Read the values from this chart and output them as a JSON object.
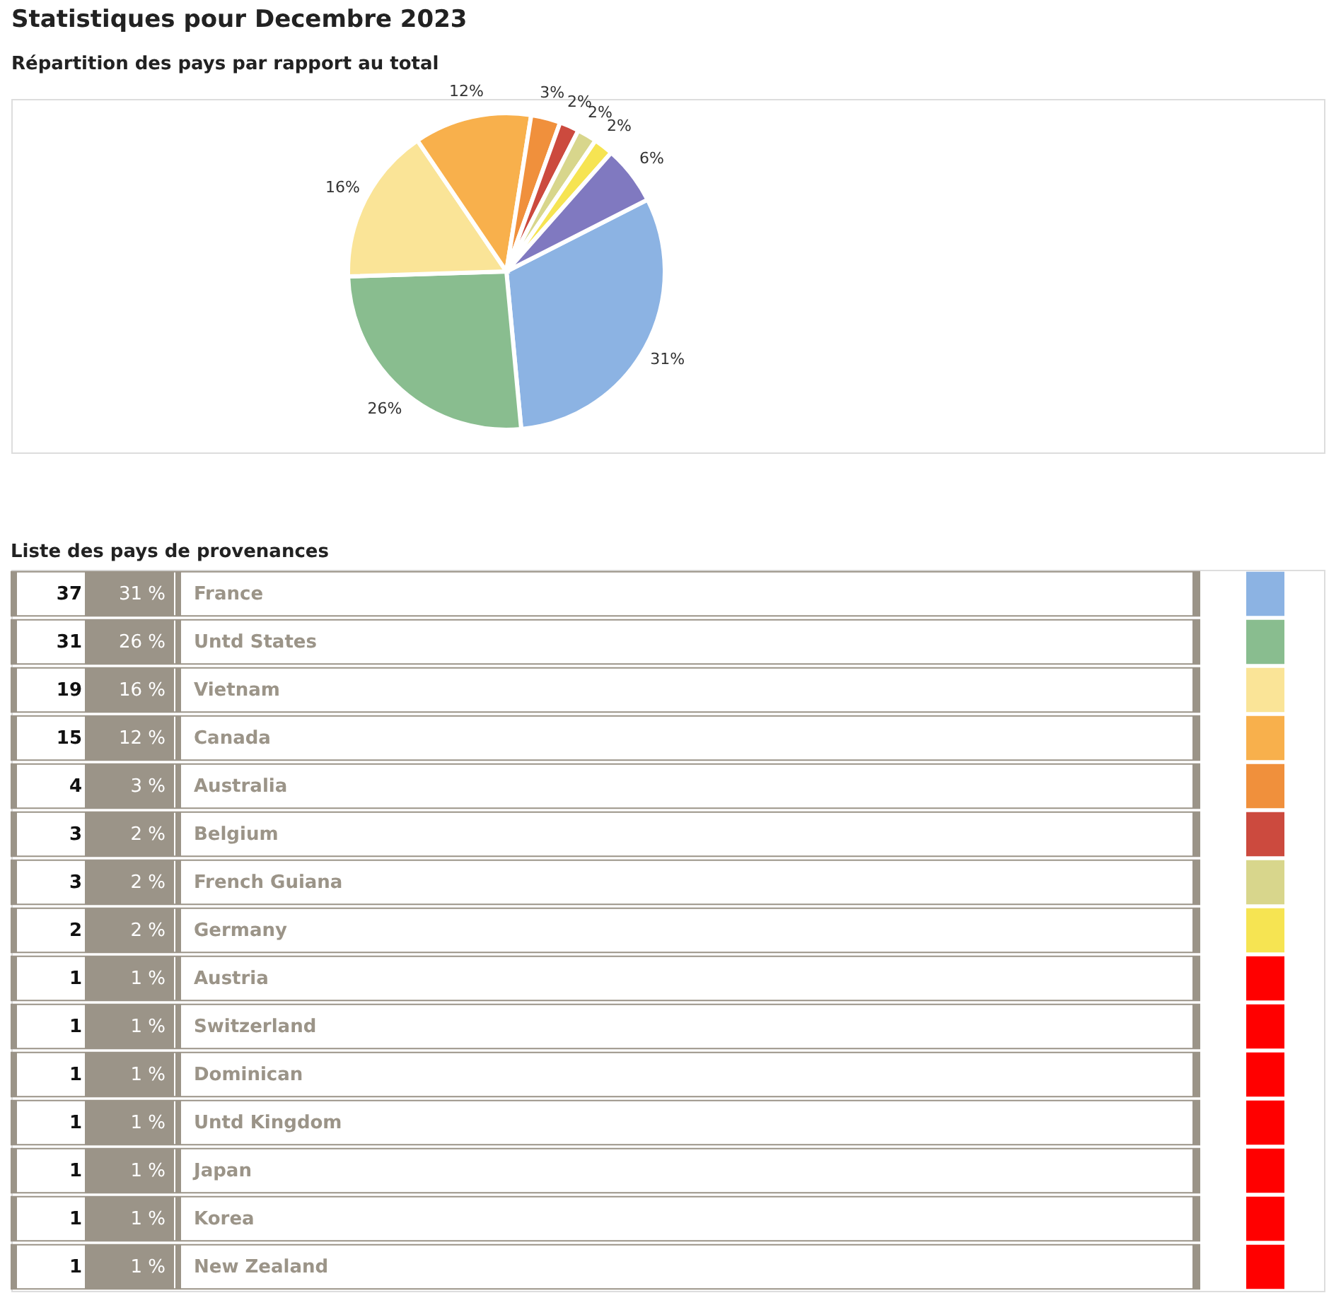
{
  "chart_data": [
    {
      "type": "pie",
      "title": "Statistiques pour Decembre 2023",
      "subtitle": "Répartition des pays par rapport au total",
      "categories": [
        null,
        null,
        null,
        null,
        null,
        null,
        null,
        null,
        null
      ],
      "values": [
        31,
        26,
        16,
        12,
        3,
        2,
        2,
        2,
        6
      ],
      "value_labels": [
        "31%",
        "26%",
        "16%",
        "12%",
        "3%",
        "2%",
        "2%",
        "2%",
        "6%"
      ],
      "colors": [
        "#8cb3e3",
        "#89bd8f",
        "#fae497",
        "#f8b04c",
        "#f0903c",
        "#cc4a3e",
        "#d8d68c",
        "#f6e452",
        "#8079c0"
      ]
    },
    {
      "type": "other",
      "title": "Liste des pays de provenances",
      "categories": [
        "France",
        "Untd States",
        "Vietnam",
        "Canada",
        "Australia",
        "Belgium",
        "French Guiana",
        "Germany",
        "Austria",
        "Switzerland",
        "Dominican",
        "Untd Kingdom",
        "Japan",
        "Korea",
        "New Zealand"
      ],
      "series": [
        {
          "values": [
            37,
            31,
            19,
            15,
            4,
            3,
            3,
            2,
            1,
            1,
            1,
            1,
            1,
            1,
            1
          ]
        },
        {
          "values": [
            31,
            26,
            16,
            12,
            3,
            2,
            2,
            2,
            1,
            1,
            1,
            1,
            1,
            1,
            1
          ],
          "value_labels": [
            "31 %",
            "26 %",
            "16 %",
            "12 %",
            "3 %",
            "2 %",
            "2 %",
            "2 %",
            "1 %",
            "1 %",
            "1 %",
            "1 %",
            "1 %",
            "1 %",
            "1 %"
          ]
        }
      ],
      "colors": [
        "#8cb3e3",
        "#89bd8f",
        "#fae497",
        "#f8b04c",
        "#f0903c",
        "#cc4a3e",
        "#d8d68c",
        "#f6e452",
        "#ff0000",
        "#ff0000",
        "#ff0000",
        "#ff0000",
        "#ff0000",
        "#ff0000",
        "#ff0000"
      ],
      "data_labels": true
    }
  ]
}
